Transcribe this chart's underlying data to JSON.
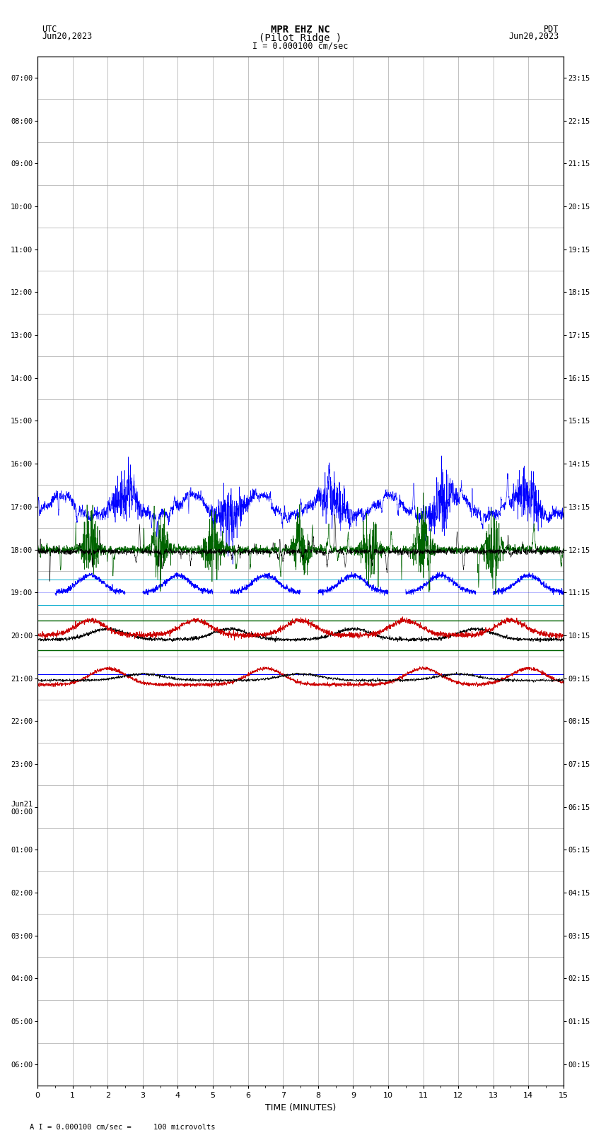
{
  "title_line1": "MPR EHZ NC",
  "title_line2": "(Pilot Ridge )",
  "title_line3": "I = 0.000100 cm/sec",
  "left_label_top": "UTC",
  "left_label_date": "Jun20,2023",
  "right_label_top": "PDT",
  "right_label_date": "Jun20,2023",
  "bottom_label": "TIME (MINUTES)",
  "footnote": "A I = 0.000100 cm/sec =     100 microvolts",
  "utc_times": [
    "07:00",
    "08:00",
    "09:00",
    "10:00",
    "11:00",
    "12:00",
    "13:00",
    "14:00",
    "15:00",
    "16:00",
    "17:00",
    "18:00",
    "19:00",
    "20:00",
    "21:00",
    "22:00",
    "23:00",
    "Jun21\n00:00",
    "01:00",
    "02:00",
    "03:00",
    "04:00",
    "05:00",
    "06:00"
  ],
  "pdt_times": [
    "00:15",
    "01:15",
    "02:15",
    "03:15",
    "04:15",
    "05:15",
    "06:15",
    "07:15",
    "08:15",
    "09:15",
    "10:15",
    "11:15",
    "12:15",
    "13:15",
    "14:15",
    "15:15",
    "16:15",
    "17:15",
    "18:15",
    "19:15",
    "20:15",
    "21:15",
    "22:15",
    "23:15"
  ],
  "n_rows": 24,
  "n_minutes": 15,
  "background_color": "#ffffff",
  "grid_color": "#aaaaaa",
  "colors": {
    "blue": "#0000ff",
    "green": "#006400",
    "black": "#000000",
    "red": "#cc0000",
    "cyan": "#00aacc"
  }
}
